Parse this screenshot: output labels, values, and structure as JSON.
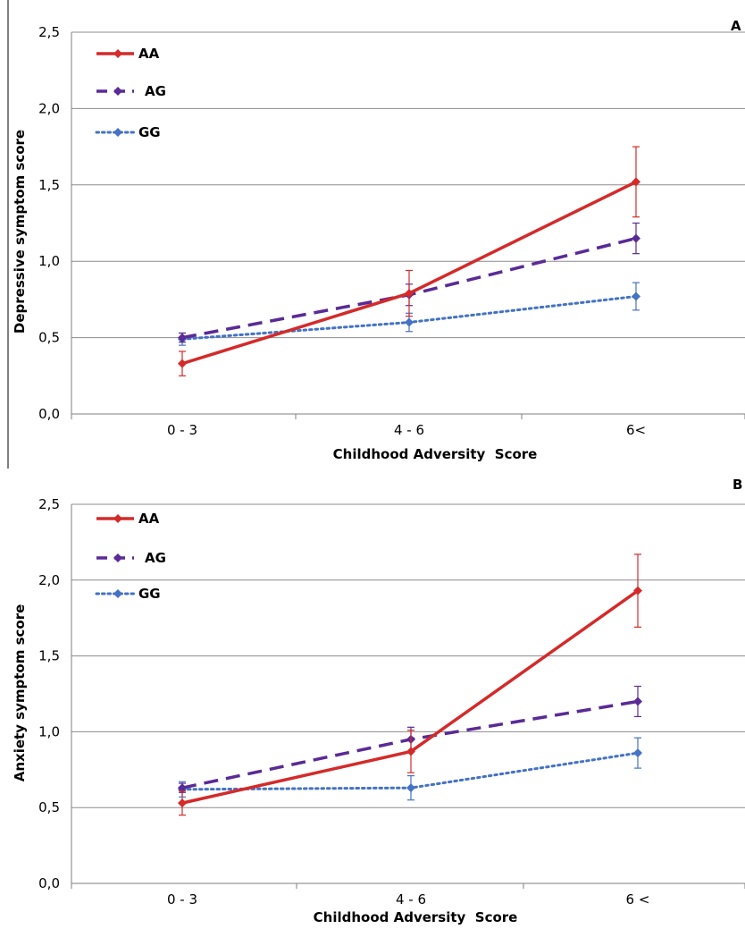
{
  "chart_data": [
    {
      "type": "line",
      "panel_label": "A",
      "categories": [
        "0 - 3",
        "4 - 6",
        "6<"
      ],
      "xlabel": "Childhood Adversity  Score",
      "ylabel": "Depressive symptom score",
      "ylim": [
        0,
        2.5
      ],
      "yticks": [
        "0,0",
        "0,5",
        "1,0",
        "1,5",
        "2,0",
        "2,5"
      ],
      "grid": true,
      "legend_position": "top-left",
      "series": [
        {
          "name": "AA",
          "color": "#d42a2a",
          "style": "solid",
          "values": [
            0.33,
            0.79,
            1.52
          ],
          "errors": [
            0.08,
            0.15,
            0.23
          ]
        },
        {
          "name": "AG",
          "color": "#5a2a96",
          "style": "dashed",
          "values": [
            0.5,
            0.78,
            1.15
          ],
          "errors": [
            0.03,
            0.07,
            0.1
          ]
        },
        {
          "name": "GG",
          "color": "#4472c4",
          "style": "dotted",
          "values": [
            0.49,
            0.6,
            0.77
          ],
          "errors": [
            0.04,
            0.06,
            0.09
          ]
        }
      ]
    },
    {
      "type": "line",
      "panel_label": "B",
      "categories": [
        "0 - 3",
        "4 - 6",
        "6 <"
      ],
      "xlabel": "Childhood Adversity  Score",
      "ylabel": "Anxiety symptom score",
      "ylim": [
        0,
        2.5
      ],
      "yticks": [
        "0,0",
        "0,5",
        "1,0",
        "1,5",
        "2,0",
        "2,5"
      ],
      "grid": true,
      "legend_position": "top-left",
      "series": [
        {
          "name": "AA",
          "color": "#d42a2a",
          "style": "solid",
          "values": [
            0.53,
            0.87,
            1.93
          ],
          "errors": [
            0.08,
            0.14,
            0.24
          ]
        },
        {
          "name": "AG",
          "color": "#5a2a96",
          "style": "dashed",
          "values": [
            0.63,
            0.95,
            1.2
          ],
          "errors": [
            0.03,
            0.08,
            0.1
          ]
        },
        {
          "name": "GG",
          "color": "#4472c4",
          "style": "dotted",
          "values": [
            0.62,
            0.63,
            0.86
          ],
          "errors": [
            0.05,
            0.08,
            0.1
          ]
        }
      ]
    }
  ]
}
